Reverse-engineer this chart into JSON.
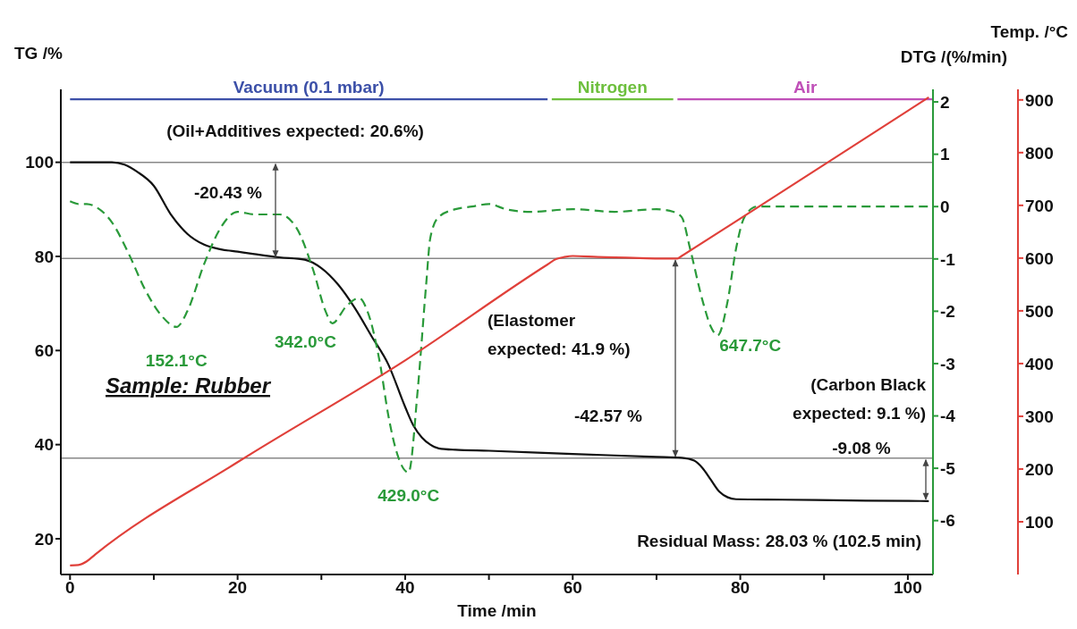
{
  "chart_data": {
    "type": "line",
    "xlabel": "Time /min",
    "ylabel": "TG /%",
    "y2label": "DTG /(%/min)",
    "y3label": "Temp. /°C",
    "xlim": [
      -1.1,
      103
    ],
    "xticks": [
      0,
      {
        "value": 10,
        "label": null
      },
      20,
      {
        "value": 30,
        "label": null
      },
      40,
      {
        "value": 50,
        "label": null
      },
      60,
      {
        "value": 70,
        "label": null
      },
      80,
      {
        "value": 90,
        "label": null
      },
      100
    ],
    "ylim": [
      12.4,
      115.5
    ],
    "yticks": [
      20,
      40,
      60,
      80,
      100
    ],
    "y2lim": [
      -7.03,
      2.24
    ],
    "y2ticks": [
      -6,
      -5,
      -4,
      -3,
      -2,
      -1,
      0,
      1,
      2
    ],
    "y3lim": [
      0,
      920
    ],
    "y3ticks": [
      100,
      200,
      300,
      400,
      500,
      600,
      700,
      800,
      900
    ],
    "series": [
      {
        "color": "#111111",
        "axis": "y",
        "line_style": "solid",
        "x": [
          0,
          5,
          6.5,
          8,
          10,
          12,
          14,
          16,
          18,
          20,
          22,
          25,
          28,
          30,
          32,
          34,
          36,
          38,
          40,
          41,
          42,
          43,
          44,
          46,
          50,
          60,
          70,
          73,
          74.5,
          75.5,
          76.5,
          77.5,
          78.5,
          79.5,
          85,
          95,
          102.5
        ],
        "values": [
          100,
          100,
          99.5,
          98,
          95,
          89,
          84.8,
          82.5,
          81.5,
          81,
          80.5,
          79.8,
          79.3,
          77.5,
          74,
          69,
          63,
          57,
          48,
          44,
          41.5,
          40,
          39.2,
          38.9,
          38.7,
          38,
          37.4,
          37.2,
          36.6,
          35,
          32.5,
          30,
          28.8,
          28.4,
          28.3,
          28.1,
          28.0
        ]
      },
      {
        "color": "#2a9a3a",
        "axis": "y2",
        "line_style": "dashed",
        "x": [
          0,
          1,
          2,
          3,
          5,
          7,
          9,
          11,
          12.7,
          14,
          16,
          18,
          20,
          22,
          25,
          27,
          29,
          30.5,
          31.3,
          33,
          34.5,
          35.5,
          37,
          38,
          39,
          40.4,
          41.5,
          42.5,
          43,
          44,
          46,
          48,
          50,
          52,
          55,
          60,
          65,
          70,
          72,
          73,
          74,
          75.5,
          76.5,
          77.3,
          78.5,
          79.5,
          80.5,
          82,
          90,
          102.5
        ],
        "values": [
          0.1,
          0.05,
          0.05,
          0,
          -0.3,
          -0.9,
          -1.6,
          -2.1,
          -2.3,
          -2,
          -1.1,
          -0.4,
          -0.1,
          -0.15,
          -0.15,
          -0.4,
          -1.2,
          -2,
          -2.23,
          -1.9,
          -1.75,
          -2,
          -3,
          -4,
          -4.7,
          -5.08,
          -3.5,
          -1.5,
          -0.6,
          -0.2,
          -0.05,
          0,
          0.05,
          -0.05,
          -0.1,
          -0.05,
          -0.1,
          -0.05,
          -0.1,
          -0.2,
          -0.8,
          -1.8,
          -2.3,
          -2.46,
          -1.8,
          -0.8,
          -0.2,
          0,
          0,
          0
        ]
      },
      {
        "name": "Vacuum (0.1 mbar)",
        "color": "#3c50a8",
        "axis": "y",
        "line_style": "solid",
        "x": [
          0,
          57
        ],
        "values": [
          113.4,
          113.4
        ]
      },
      {
        "name": "Nitrogen",
        "color": "#6dbf3d",
        "axis": "y",
        "line_style": "solid",
        "x": [
          57.5,
          72
        ],
        "values": [
          113.4,
          113.4
        ]
      },
      {
        "name": "Air",
        "color": "#c050b8",
        "axis": "y",
        "line_style": "solid",
        "x": [
          72.5,
          103
        ],
        "values": [
          113.4,
          113.4
        ]
      },
      {
        "color": "#e0403a",
        "axis": "y3",
        "line_style": "solid",
        "x": [
          0,
          1,
          2,
          3,
          20,
          40,
          57,
          58,
          59,
          60,
          63,
          68,
          72,
          72.5,
          73,
          80,
          90,
          102.5
        ],
        "values": [
          17,
          18,
          25,
          38,
          213,
          406,
          588,
          598,
          602,
          604,
          602,
          600,
          599,
          599,
          604,
          675,
          777,
          905
        ]
      }
    ],
    "ref_lines": [
      {
        "axis": "y",
        "value": 100,
        "color": "#888888"
      },
      {
        "axis": "y",
        "value": 79.57,
        "color": "#888888"
      },
      {
        "axis": "y",
        "value": 37.11,
        "color": "#888888"
      }
    ],
    "annotations": [
      "(Oil+Additives expected: 20.6%)",
      "-20.43 %",
      "Sample: Rubber",
      {
        "text": "152.1°C",
        "x": 12.7,
        "y": 65
      },
      {
        "text": "342.0°C",
        "x": 31.3,
        "y": 65.7
      },
      {
        "text": "429.0°C",
        "x": 40.4,
        "y": 34
      },
      "(Elastomer\nexpected: 41.9 %)",
      "-42.57 %",
      {
        "text": "647.7°C",
        "x": 77.3,
        "y": 63
      },
      "(Carbon Black\nexpected: 9.1 %)",
      "-9.08 %",
      "Residual Mass: 28.03 % (102.5 min)"
    ]
  }
}
